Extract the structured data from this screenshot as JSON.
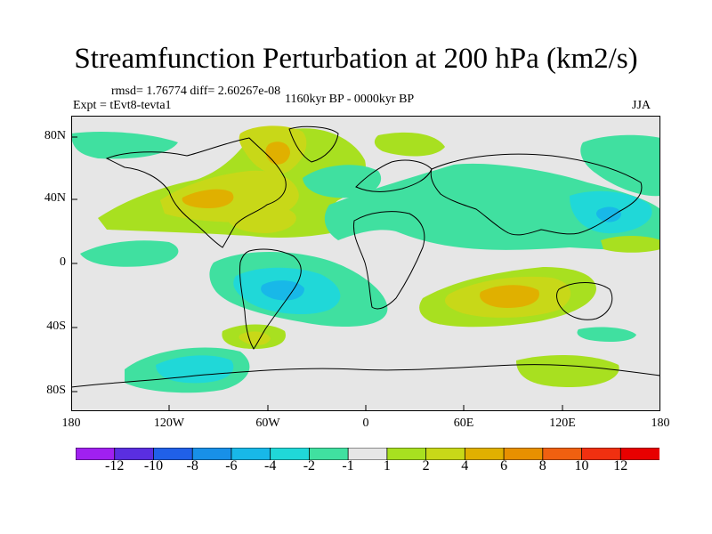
{
  "header": {
    "title": "Streamfunction Perturbation at 200 hPa (km2/s)",
    "stats": "rmsd= 1.76774  diff= 2.60267e-08",
    "experiment": "Expt = tEvt8-tevta1",
    "period": "1160kyr BP - 0000kyr BP",
    "season": "JJA"
  },
  "axes": {
    "lat_labels": [
      "80N",
      "40N",
      "0",
      "40S",
      "80S"
    ],
    "lon_labels": [
      "180",
      "120W",
      "60W",
      "0",
      "60E",
      "120E",
      "180"
    ]
  },
  "colorbar": {
    "labels": [
      "-12",
      "-10",
      "-8",
      "-6",
      "-4",
      "-2",
      "-1",
      "1",
      "2",
      "4",
      "6",
      "8",
      "10",
      "12"
    ],
    "colors": [
      "#a020f0",
      "#5a2ee0",
      "#2060e8",
      "#1890e8",
      "#18b8e8",
      "#20d8d8",
      "#40e0a0",
      "#e6e6e6",
      "#a8e020",
      "#c8d818",
      "#e0b000",
      "#e89000",
      "#f06010",
      "#f03010",
      "#e80000"
    ]
  },
  "field_colors": {
    "background": "#e6e6e6",
    "pos1": "#a8e020",
    "pos2": "#c8d818",
    "pos3": "#e0b000",
    "neg1": "#40e0a0",
    "neg2": "#20d8d8",
    "neg3": "#18b8e8"
  }
}
